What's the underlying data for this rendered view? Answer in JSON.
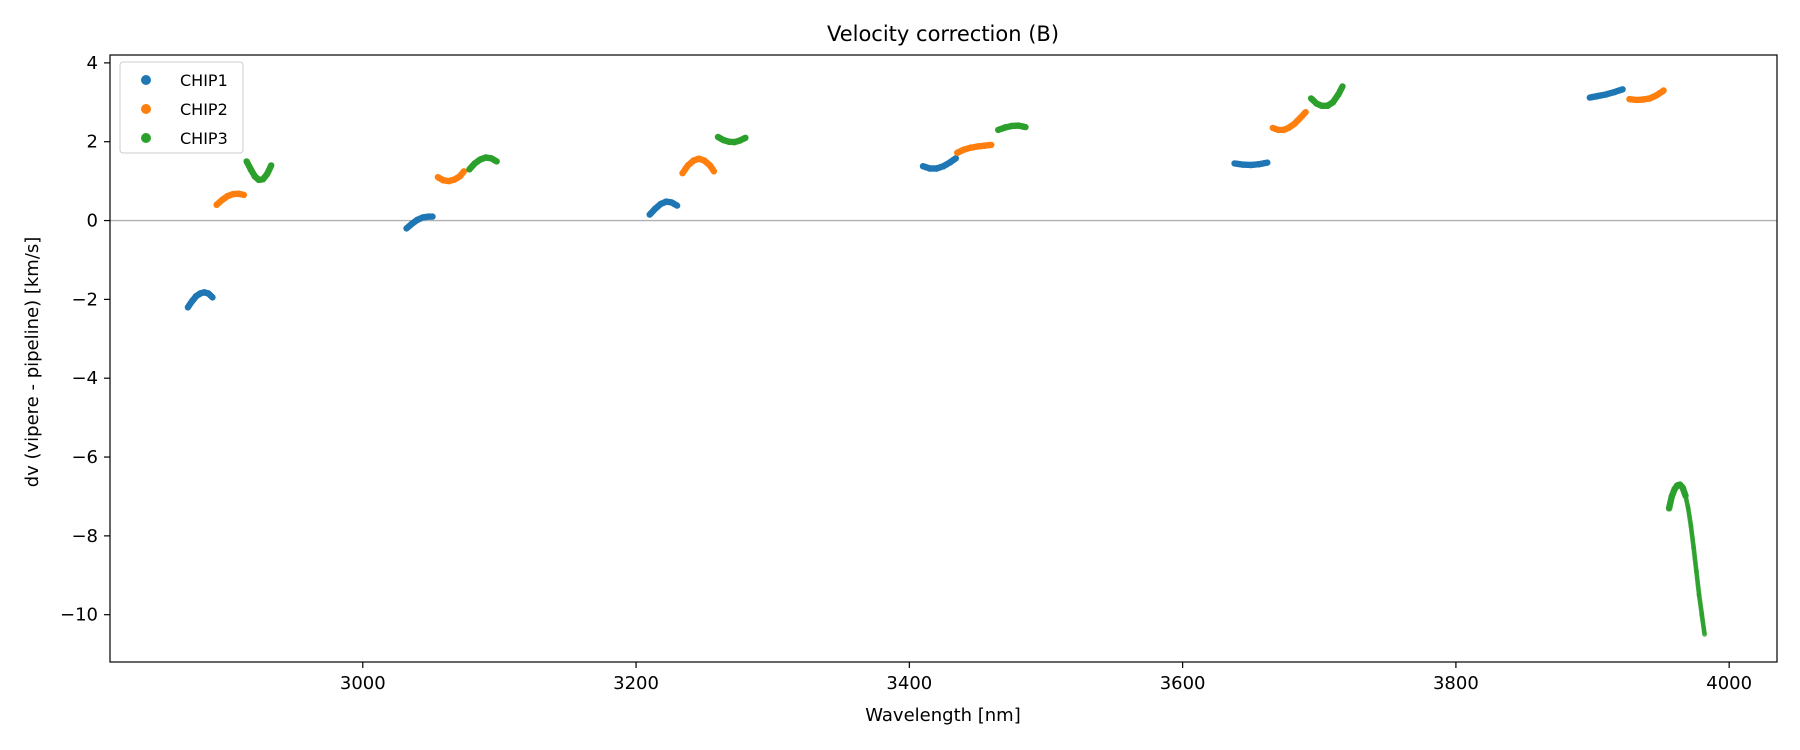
{
  "chart_data": {
    "type": "scatter",
    "title": "Velocity correction (B)",
    "xlabel": "Wavelength [nm]",
    "ylabel": "dv (vipere - pipeline) [km/s]",
    "xlim": [
      2815,
      4035
    ],
    "ylim": [
      -11.2,
      4.2
    ],
    "xticks": [
      3000,
      3200,
      3400,
      3600,
      3800,
      4000
    ],
    "yticks": [
      4,
      2,
      0,
      -2,
      -4,
      -6,
      -8,
      -10
    ],
    "xtick_labels": [
      "3000",
      "3200",
      "3400",
      "3600",
      "3800",
      "4000"
    ],
    "ytick_labels": [
      "4",
      "2",
      "0",
      "−2",
      "−4",
      "−6",
      "−8",
      "−10"
    ],
    "reference_line": 0,
    "legend": {
      "location": "top-left",
      "entries": [
        "CHIP1",
        "CHIP2",
        "CHIP3"
      ]
    },
    "series": [
      {
        "name": "CHIP1",
        "color": "#1f77b4",
        "segments": [
          [
            [
              2872,
              -2.2
            ],
            [
              2875,
              -2.05
            ],
            [
              2878,
              -1.92
            ],
            [
              2881,
              -1.85
            ],
            [
              2884,
              -1.82
            ],
            [
              2887,
              -1.85
            ],
            [
              2890,
              -1.95
            ]
          ],
          [
            [
              3032,
              -0.2
            ],
            [
              3036,
              -0.08
            ],
            [
              3040,
              0.02
            ],
            [
              3044,
              0.08
            ],
            [
              3048,
              0.1
            ],
            [
              3051,
              0.1
            ]
          ],
          [
            [
              3210,
              0.15
            ],
            [
              3214,
              0.3
            ],
            [
              3218,
              0.42
            ],
            [
              3222,
              0.48
            ],
            [
              3226,
              0.46
            ],
            [
              3230,
              0.38
            ]
          ],
          [
            [
              3410,
              1.38
            ],
            [
              3415,
              1.32
            ],
            [
              3420,
              1.32
            ],
            [
              3425,
              1.38
            ],
            [
              3430,
              1.48
            ],
            [
              3434,
              1.58
            ]
          ],
          [
            [
              3638,
              1.45
            ],
            [
              3644,
              1.42
            ],
            [
              3650,
              1.41
            ],
            [
              3656,
              1.43
            ],
            [
              3662,
              1.47
            ]
          ],
          [
            [
              3898,
              3.12
            ],
            [
              3904,
              3.16
            ],
            [
              3910,
              3.2
            ],
            [
              3916,
              3.26
            ],
            [
              3922,
              3.33
            ]
          ]
        ]
      },
      {
        "name": "CHIP2",
        "color": "#ff7f0e",
        "segments": [
          [
            [
              2893,
              0.4
            ],
            [
              2897,
              0.52
            ],
            [
              2901,
              0.62
            ],
            [
              2905,
              0.67
            ],
            [
              2909,
              0.68
            ],
            [
              2913,
              0.65
            ]
          ],
          [
            [
              3055,
              1.1
            ],
            [
              3059,
              1.02
            ],
            [
              3063,
              1.0
            ],
            [
              3067,
              1.04
            ],
            [
              3071,
              1.12
            ],
            [
              3074,
              1.25
            ]
          ],
          [
            [
              3234,
              1.2
            ],
            [
              3238,
              1.4
            ],
            [
              3242,
              1.52
            ],
            [
              3246,
              1.57
            ],
            [
              3250,
              1.52
            ],
            [
              3254,
              1.4
            ],
            [
              3257,
              1.25
            ]
          ],
          [
            [
              3435,
              1.72
            ],
            [
              3440,
              1.8
            ],
            [
              3445,
              1.85
            ],
            [
              3450,
              1.88
            ],
            [
              3455,
              1.9
            ],
            [
              3460,
              1.92
            ]
          ],
          [
            [
              3666,
              2.35
            ],
            [
              3670,
              2.3
            ],
            [
              3674,
              2.3
            ],
            [
              3678,
              2.36
            ],
            [
              3682,
              2.46
            ],
            [
              3686,
              2.6
            ],
            [
              3690,
              2.75
            ]
          ],
          [
            [
              3927,
              3.08
            ],
            [
              3932,
              3.06
            ],
            [
              3937,
              3.07
            ],
            [
              3942,
              3.1
            ],
            [
              3947,
              3.18
            ],
            [
              3952,
              3.3
            ]
          ]
        ]
      },
      {
        "name": "CHIP3",
        "color": "#2ca02c",
        "segments": [
          [
            [
              2915,
              1.5
            ],
            [
              2918,
              1.3
            ],
            [
              2921,
              1.12
            ],
            [
              2924,
              1.03
            ],
            [
              2927,
              1.05
            ],
            [
              2930,
              1.18
            ],
            [
              2933,
              1.4
            ]
          ],
          [
            [
              3078,
              1.3
            ],
            [
              3082,
              1.45
            ],
            [
              3086,
              1.55
            ],
            [
              3090,
              1.6
            ],
            [
              3094,
              1.58
            ],
            [
              3098,
              1.5
            ]
          ],
          [
            [
              3260,
              2.12
            ],
            [
              3264,
              2.04
            ],
            [
              3268,
              2.0
            ],
            [
              3272,
              1.99
            ],
            [
              3276,
              2.03
            ],
            [
              3280,
              2.1
            ]
          ],
          [
            [
              3465,
              2.3
            ],
            [
              3470,
              2.36
            ],
            [
              3475,
              2.4
            ],
            [
              3480,
              2.41
            ],
            [
              3485,
              2.37
            ]
          ],
          [
            [
              3694,
              3.1
            ],
            [
              3698,
              2.97
            ],
            [
              3702,
              2.91
            ],
            [
              3706,
              2.91
            ],
            [
              3710,
              3.0
            ],
            [
              3714,
              3.2
            ],
            [
              3717,
              3.4
            ]
          ],
          [
            [
              3956,
              -7.3
            ],
            [
              3958,
              -7.0
            ],
            [
              3960,
              -6.82
            ],
            [
              3962,
              -6.72
            ],
            [
              3964,
              -6.7
            ],
            [
              3966,
              -6.78
            ],
            [
              3968,
              -6.98
            ],
            [
              3970,
              -7.3
            ],
            [
              3972,
              -7.75
            ],
            [
              3974,
              -8.3
            ],
            [
              3976,
              -8.9
            ],
            [
              3978,
              -9.5
            ],
            [
              3980,
              -10.0
            ],
            [
              3982,
              -10.5
            ]
          ]
        ]
      }
    ]
  }
}
